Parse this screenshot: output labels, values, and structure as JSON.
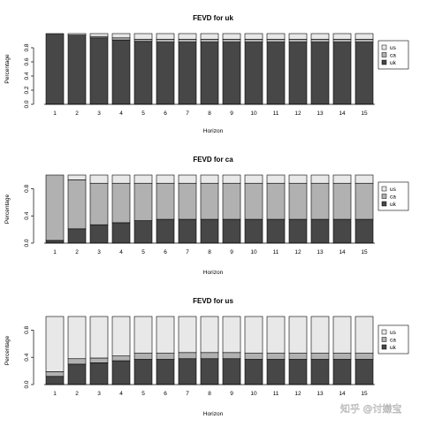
{
  "chart_data": [
    {
      "type": "bar",
      "stacked": true,
      "title": "FEVD for uk",
      "xlabel": "Horizon",
      "ylabel": "Percentage",
      "ylim": [
        0,
        1
      ],
      "yticks": [
        "0.0",
        "0.2",
        "0.4",
        "0.6",
        "0.8"
      ],
      "categories": [
        "1",
        "2",
        "3",
        "4",
        "5",
        "6",
        "7",
        "8",
        "9",
        "10",
        "11",
        "12",
        "13",
        "14",
        "15"
      ],
      "legend_position": "right",
      "series": [
        {
          "name": "uk",
          "color": "#474747",
          "values": [
            1.0,
            0.98,
            0.94,
            0.91,
            0.89,
            0.88,
            0.88,
            0.88,
            0.88,
            0.88,
            0.88,
            0.88,
            0.88,
            0.88,
            0.88
          ]
        },
        {
          "name": "ca",
          "color": "#b1b1b1",
          "values": [
            0.0,
            0.0,
            0.02,
            0.03,
            0.03,
            0.04,
            0.04,
            0.04,
            0.04,
            0.04,
            0.04,
            0.04,
            0.04,
            0.04,
            0.04
          ]
        },
        {
          "name": "us",
          "color": "#e8e8e8",
          "values": [
            0.0,
            0.02,
            0.04,
            0.06,
            0.08,
            0.08,
            0.08,
            0.08,
            0.08,
            0.08,
            0.08,
            0.08,
            0.08,
            0.08,
            0.08
          ]
        }
      ]
    },
    {
      "type": "bar",
      "stacked": true,
      "title": "FEVD for ca",
      "xlabel": "Horizon",
      "ylabel": "Percentage",
      "ylim": [
        0,
        1
      ],
      "yticks": [
        "0.0",
        "0.4",
        "0.8"
      ],
      "categories": [
        "1",
        "2",
        "3",
        "4",
        "5",
        "6",
        "7",
        "8",
        "9",
        "10",
        "11",
        "12",
        "13",
        "14",
        "15"
      ],
      "legend_position": "right",
      "series": [
        {
          "name": "uk",
          "color": "#474747",
          "values": [
            0.04,
            0.21,
            0.27,
            0.3,
            0.33,
            0.35,
            0.35,
            0.35,
            0.35,
            0.35,
            0.35,
            0.35,
            0.35,
            0.35,
            0.35
          ]
        },
        {
          "name": "ca",
          "color": "#b1b1b1",
          "values": [
            0.96,
            0.72,
            0.61,
            0.58,
            0.55,
            0.53,
            0.53,
            0.53,
            0.53,
            0.53,
            0.53,
            0.53,
            0.53,
            0.53,
            0.53
          ]
        },
        {
          "name": "us",
          "color": "#e8e8e8",
          "values": [
            0.0,
            0.07,
            0.12,
            0.12,
            0.12,
            0.12,
            0.12,
            0.12,
            0.12,
            0.12,
            0.12,
            0.12,
            0.12,
            0.12,
            0.12
          ]
        }
      ]
    },
    {
      "type": "bar",
      "stacked": true,
      "title": "FEVD for us",
      "xlabel": "Horizon",
      "ylabel": "Percentage",
      "ylim": [
        0,
        1
      ],
      "yticks": [
        "0.0",
        "0.4",
        "0.8"
      ],
      "categories": [
        "1",
        "2",
        "3",
        "4",
        "5",
        "6",
        "7",
        "8",
        "9",
        "10",
        "11",
        "12",
        "13",
        "14",
        "15"
      ],
      "legend_position": "right",
      "series": [
        {
          "name": "uk",
          "color": "#474747",
          "values": [
            0.12,
            0.3,
            0.32,
            0.35,
            0.37,
            0.37,
            0.38,
            0.38,
            0.38,
            0.37,
            0.37,
            0.37,
            0.37,
            0.37,
            0.37
          ]
        },
        {
          "name": "ca",
          "color": "#b1b1b1",
          "values": [
            0.07,
            0.08,
            0.07,
            0.07,
            0.09,
            0.09,
            0.09,
            0.09,
            0.09,
            0.09,
            0.09,
            0.09,
            0.09,
            0.09,
            0.09
          ]
        },
        {
          "name": "us",
          "color": "#e8e8e8",
          "values": [
            0.81,
            0.62,
            0.61,
            0.58,
            0.54,
            0.54,
            0.53,
            0.53,
            0.53,
            0.54,
            0.54,
            0.54,
            0.54,
            0.54,
            0.54
          ]
        }
      ]
    }
  ],
  "watermark": "知乎 @讨嫌宝"
}
